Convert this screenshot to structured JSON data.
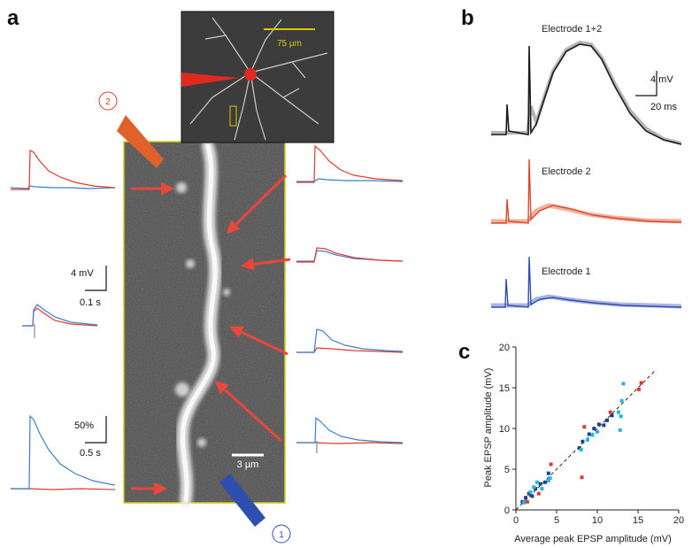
{
  "panels": {
    "a": "a",
    "b": "b",
    "c": "c"
  },
  "panel_a": {
    "inset_scale": "75 µm",
    "main_scale": "3 µm",
    "electrode_2": "2",
    "electrode_1": "1",
    "scale_voltage": "4 mV",
    "scale_time_short": "0.1 s",
    "scale_percent": "50%",
    "scale_time_long": "0.5 s"
  },
  "panel_b": {
    "trace_1_label": "Electrode 1+2",
    "trace_2_label": "Electrode 2",
    "trace_3_label": "Electrode 1",
    "scale_voltage": "4 mV",
    "scale_time": "20 ms",
    "colors": {
      "combined": "#1a1a1a",
      "electrode_2": "#d9482b",
      "electrode_1": "#2f4fb0"
    }
  },
  "colors": {
    "red": "#e03a2f",
    "blue": "#3a7fc8",
    "dark_blue": "#1f3e8c",
    "cyan": "#22b8e0",
    "frame": "#d8c800",
    "arrow": "#e8483c"
  },
  "chart_data": {
    "type": "scatter",
    "xlabel": "Average peak EPSP amplitude (mV)",
    "ylabel": "Peak EPSP amplitude (mV)",
    "xlim": [
      0,
      20
    ],
    "ylim": [
      0,
      20
    ],
    "xticks": [
      "0",
      "5",
      "10",
      "15",
      "20"
    ],
    "yticks": [
      "0",
      "5",
      "10",
      "15",
      "20"
    ],
    "identity_line": true,
    "series": [
      {
        "color": "#1f3e8c",
        "points": [
          [
            0.8,
            1.0
          ],
          [
            1.2,
            1.5
          ],
          [
            1.6,
            2.0
          ],
          [
            2.0,
            1.7
          ],
          [
            2.4,
            2.6
          ],
          [
            3.0,
            3.2
          ],
          [
            3.6,
            3.4
          ],
          [
            4.0,
            4.5
          ],
          [
            7.8,
            7.6
          ],
          [
            8.2,
            8.4
          ],
          [
            9.0,
            9.3
          ],
          [
            9.6,
            10.0
          ],
          [
            10.2,
            10.5
          ],
          [
            10.8,
            10.4
          ],
          [
            11.2,
            11.0
          ],
          [
            11.8,
            11.6
          ]
        ]
      },
      {
        "color": "#22b8e0",
        "points": [
          [
            1.0,
            0.9
          ],
          [
            1.8,
            2.2
          ],
          [
            2.2,
            2.8
          ],
          [
            2.6,
            3.4
          ],
          [
            3.2,
            2.6
          ],
          [
            4.0,
            3.6
          ],
          [
            4.2,
            3.9
          ],
          [
            8.0,
            7.4
          ],
          [
            8.8,
            8.6
          ],
          [
            9.4,
            9.2
          ],
          [
            10.0,
            9.6
          ],
          [
            12.6,
            12.0
          ],
          [
            12.8,
            9.8
          ],
          [
            13.0,
            13.4
          ],
          [
            13.2,
            15.5
          ],
          [
            12.9,
            11.5
          ]
        ]
      },
      {
        "color": "#e03a2f",
        "points": [
          [
            1.4,
            1.0
          ],
          [
            2.8,
            2.0
          ],
          [
            4.3,
            5.6
          ],
          [
            8.1,
            4.0
          ],
          [
            8.4,
            10.2
          ],
          [
            11.6,
            12.0
          ],
          [
            15.1,
            14.8
          ],
          [
            15.4,
            15.6
          ]
        ]
      }
    ]
  }
}
